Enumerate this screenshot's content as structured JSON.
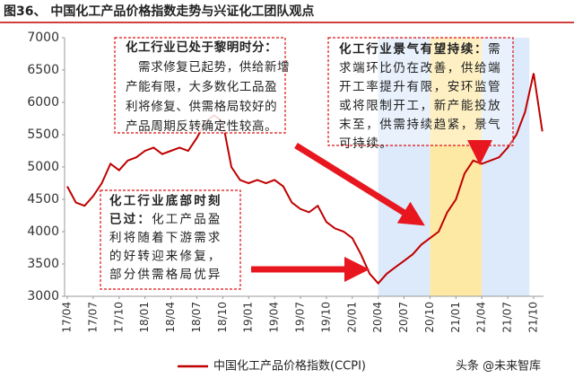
{
  "chart_data": {
    "type": "line",
    "title": "图36、 中国化工产品价格指数走势与兴证化工团队观点",
    "categories": [
      "17/04",
      null,
      null,
      "17/07",
      null,
      null,
      "17/10",
      null,
      null,
      "18/01",
      null,
      null,
      "18/04",
      null,
      null,
      "18/07",
      null,
      null,
      "18/10",
      null,
      null,
      "19/01",
      null,
      null,
      "19/04",
      null,
      null,
      "19/07",
      null,
      null,
      "19/10",
      null,
      null,
      "20/01",
      null,
      null,
      "20/04",
      null,
      null,
      "20/07",
      null,
      null,
      "20/10",
      null,
      null,
      "21/01",
      null,
      null,
      "21/04",
      null,
      null,
      "21/07",
      null,
      null,
      "21/10",
      null
    ],
    "series": [
      {
        "name": "中国化工产品价格指数(CCPI)",
        "color": "#c00000",
        "values": [
          4700,
          4450,
          4400,
          4550,
          4750,
          5050,
          4950,
          5100,
          5150,
          5250,
          5300,
          5200,
          5250,
          5300,
          5250,
          5450,
          5700,
          5800,
          5700,
          5000,
          4800,
          4750,
          4800,
          4750,
          4800,
          4700,
          4450,
          4350,
          4300,
          4400,
          4150,
          4050,
          4000,
          3900,
          3650,
          3350,
          3200,
          3350,
          3450,
          3550,
          3650,
          3800,
          3900,
          4000,
          4300,
          4500,
          4900,
          5100,
          5050,
          5100,
          5150,
          5300,
          5500,
          5850,
          6450,
          5550
        ]
      }
    ],
    "ylim": [
      3000,
      7000
    ],
    "yticks": [
      3000,
      3500,
      4000,
      4500,
      5000,
      5500,
      6000,
      6500,
      7000
    ],
    "shaded": [
      {
        "from": "20/04",
        "to": "20/10",
        "color": "#dceafb"
      },
      {
        "from": "20/10",
        "to": "21/04",
        "color": "#fde9a3"
      },
      {
        "from": "21/04",
        "to": "21/09",
        "color": "#dceafb"
      }
    ],
    "annotations": [
      {
        "lines": [
          [
            {
              "text": "化工行业已处于黎明时分：",
              "bold": true
            }
          ],
          [
            {
              "text": "需求修复已起势，供给新增",
              "bold": false
            }
          ],
          [
            {
              "text": "产能有限，大多数化工品盈",
              "bold": false
            }
          ],
          [
            {
              "text": "利将修复、供需格局较好的",
              "bold": false
            }
          ],
          [
            {
              "text": "产品周期反转确定性较高。",
              "bold": false
            }
          ]
        ]
      },
      {
        "lines": [
          [
            {
              "text": "化工行业底部时刻",
              "bold": true
            }
          ],
          [
            {
              "text": "已过：",
              "bold": true
            },
            {
              "text": "化工产品盈",
              "bold": false
            }
          ],
          [
            {
              "text": "利将随着下游需求",
              "bold": false
            }
          ],
          [
            {
              "text": "的好转迎来修复，",
              "bold": false
            }
          ],
          [
            {
              "text": "部分供需格局优异",
              "bold": false
            }
          ]
        ]
      },
      {
        "lines": [
          [
            {
              "text": "化工行业景气有望持续：",
              "bold": true
            },
            {
              "text": "需",
              "bold": false
            }
          ],
          [
            {
              "text": "求端环比仍在改善，供给端",
              "bold": false
            }
          ],
          [
            {
              "text": "开工率提升有限，安环监管",
              "bold": false
            }
          ],
          [
            {
              "text": "或将限制开工，新产能投放",
              "bold": false
            }
          ],
          [
            {
              "text": "末至，供需持续趋紧，景气",
              "bold": false
            }
          ],
          [
            {
              "text": "可持续。",
              "bold": false
            }
          ]
        ]
      }
    ],
    "watermark": "头条 @未来智库"
  }
}
